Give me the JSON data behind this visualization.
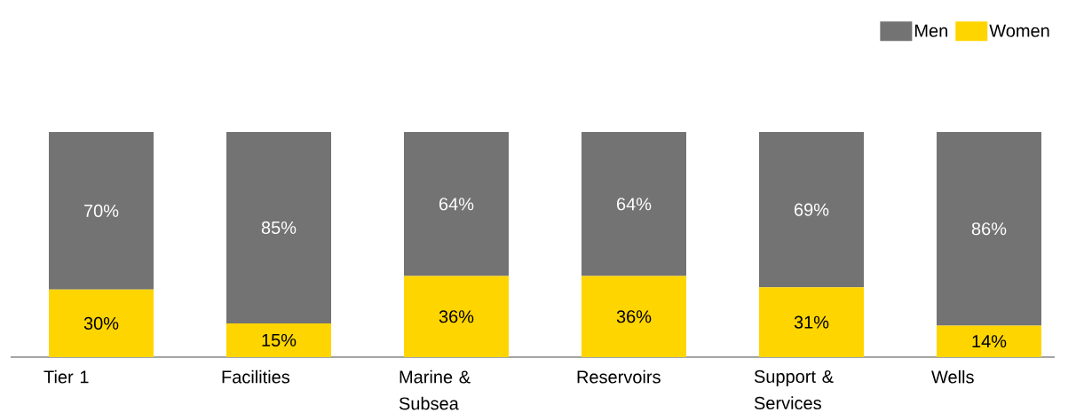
{
  "chart_data": {
    "type": "bar",
    "stacked": true,
    "categories": [
      "Tier 1",
      "Facilities",
      "Marine & Subsea",
      "Reservoirs",
      "Support & Services",
      "Wells"
    ],
    "legend": "top right",
    "series": [
      {
        "name": "Women",
        "color": "#ffd500",
        "values": [
          30,
          15,
          36,
          36,
          31,
          14
        ],
        "value_labels": [
          "30%",
          "15%",
          "36%",
          "36%",
          "31%",
          "14%"
        ]
      },
      {
        "name": "Men",
        "color": "#737373",
        "values": [
          70,
          85,
          64,
          64,
          69,
          86
        ],
        "value_labels": [
          "70%",
          "85%",
          "64%",
          "64%",
          "69%",
          "86%"
        ]
      }
    ]
  }
}
